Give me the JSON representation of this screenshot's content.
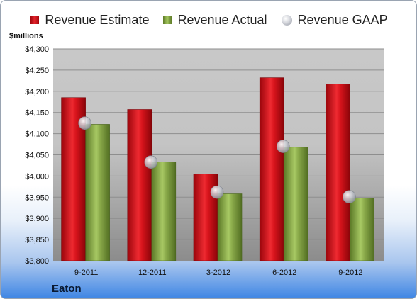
{
  "colors": {
    "estimate": "#d8141c",
    "actual": "#8aaa4a",
    "gaap": "#c0c4cc",
    "frame_accent": "#3f86e4"
  },
  "legend": {
    "estimate_label": "Revenue Estimate",
    "actual_label": "Revenue Actual",
    "gaap_label": "Revenue GAAP"
  },
  "unit_label": "$millions",
  "company": "Eaton",
  "chart_data": {
    "type": "bar",
    "categories": [
      "9-2011",
      "12-2011",
      "3-2012",
      "6-2012",
      "9-2012"
    ],
    "series": [
      {
        "name": "Revenue Estimate",
        "type": "bar",
        "values": [
          4185,
          4157,
          4005,
          4232,
          4217
        ]
      },
      {
        "name": "Revenue Actual",
        "type": "bar",
        "values": [
          4122,
          4033,
          3958,
          4068,
          3948
        ]
      },
      {
        "name": "Revenue GAAP",
        "type": "scatter",
        "values": [
          4125,
          4033,
          3962,
          4070,
          3951
        ]
      }
    ],
    "ylabel": "$millions",
    "ylim": [
      3800,
      4300
    ],
    "yticks": [
      3800,
      3850,
      3900,
      3950,
      4000,
      4050,
      4100,
      4150,
      4200,
      4250,
      4300
    ],
    "ytick_labels": [
      "$3,800",
      "$3,850",
      "$3,900",
      "$3,950",
      "$4,000",
      "$4,050",
      "$4,100",
      "$4,150",
      "$4,200",
      "$4,250",
      "$4,300"
    ],
    "grid": true,
    "legend_position": "top"
  }
}
